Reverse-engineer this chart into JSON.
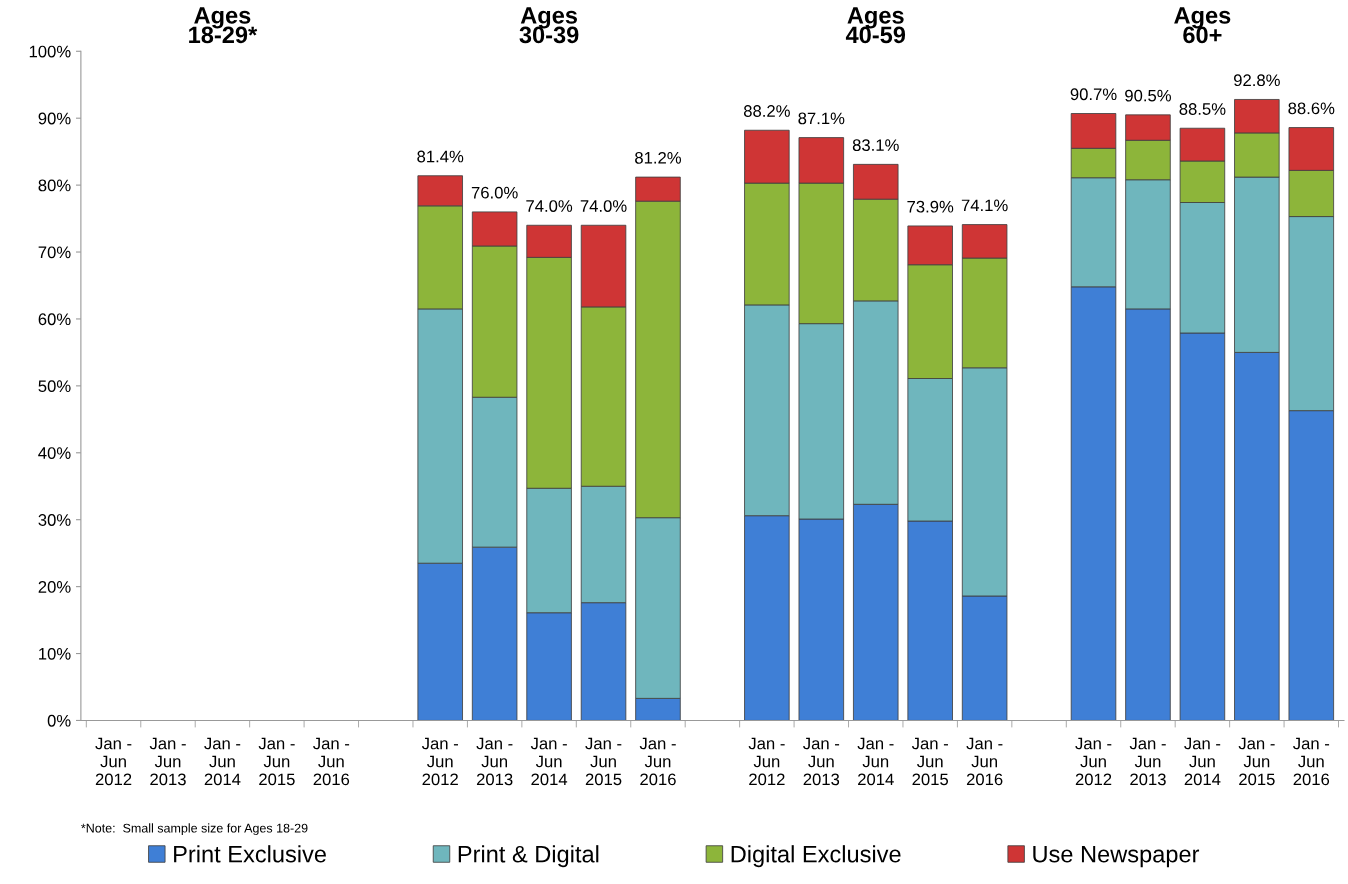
{
  "chart_data": {
    "type": "bar",
    "stacked": true,
    "categories": [
      "Jan -\nJun\n2012",
      "Jan -\nJun\n2013",
      "Jan -\nJun\n2014",
      "Jan -\nJun\n2015",
      "Jan -\nJun\n2016",
      null,
      "Jan -\nJun\n2012",
      "Jan -\nJun\n2013",
      "Jan -\nJun\n2014",
      "Jan -\nJun\n2015",
      "Jan -\nJun\n2016",
      null,
      "Jan -\nJun\n2012",
      "Jan -\nJun\n2013",
      "Jan -\nJun\n2014",
      "Jan -\nJun\n2015",
      "Jan -\nJun\n2016",
      null,
      "Jan -\nJun\n2012",
      "Jan -\nJun\n2013",
      "Jan -\nJun\n2014",
      "Jan -\nJun\n2015",
      "Jan -\nJun\n2016"
    ],
    "series": [
      {
        "name": "Print Exclusive",
        "color": "#3f7fd6",
        "values": [
          null,
          null,
          null,
          null,
          null,
          null,
          23.5,
          25.9,
          16.1,
          17.6,
          3.3,
          null,
          30.6,
          30.1,
          32.3,
          29.8,
          18.6,
          null,
          64.8,
          61.5,
          57.9,
          55.0,
          46.3
        ]
      },
      {
        "name": "Print & Digital",
        "color": "#6fb6bd",
        "values": [
          null,
          null,
          null,
          null,
          null,
          null,
          38.0,
          22.4,
          18.6,
          17.4,
          27.0,
          null,
          31.5,
          29.2,
          30.4,
          21.3,
          34.1,
          null,
          16.3,
          19.3,
          19.5,
          26.2,
          29.0
        ]
      },
      {
        "name": "Digital Exclusive",
        "color": "#8db53a",
        "values": [
          null,
          null,
          null,
          null,
          null,
          null,
          15.4,
          22.6,
          34.5,
          26.8,
          47.3,
          null,
          18.2,
          21.0,
          15.2,
          17.0,
          16.4,
          null,
          4.4,
          5.9,
          6.2,
          6.6,
          6.9
        ]
      },
      {
        "name": "Use Newspaper",
        "color": "#cf3535",
        "values": [
          null,
          null,
          null,
          null,
          null,
          null,
          4.5,
          5.1,
          4.8,
          12.2,
          3.6,
          null,
          7.9,
          6.8,
          5.2,
          5.8,
          5.0,
          null,
          5.2,
          3.8,
          4.9,
          5.0,
          6.4
        ]
      }
    ],
    "totals": [
      null,
      null,
      null,
      null,
      null,
      null,
      "81.4%",
      "76.0%",
      "74.0%",
      "74.0%",
      "81.2%",
      null,
      "88.2%",
      "87.1%",
      "83.1%",
      "73.9%",
      "74.1%",
      null,
      "90.7%",
      "90.5%",
      "88.5%",
      "92.8%",
      "88.6%"
    ],
    "ylim": [
      0,
      100
    ],
    "yticks": [
      {
        "value": 0,
        "label": "0%"
      },
      {
        "value": 10,
        "label": "10%"
      },
      {
        "value": 20,
        "label": "20%"
      },
      {
        "value": 30,
        "label": "30%"
      },
      {
        "value": 40,
        "label": "40%"
      },
      {
        "value": 50,
        "label": "50%"
      },
      {
        "value": 60,
        "label": "60%"
      },
      {
        "value": 70,
        "label": "70%"
      },
      {
        "value": 80,
        "label": "80%"
      },
      {
        "value": 90,
        "label": "90%"
      },
      {
        "value": 100,
        "label": "100%"
      }
    ],
    "annotations": [
      "Ages\n18-29*",
      "Ages\n30-39",
      "Ages\n40-59",
      "Ages\n60+",
      "*Note:  Small sample size for Ages 18-29"
    ],
    "legend": "bottom",
    "grid": false
  }
}
